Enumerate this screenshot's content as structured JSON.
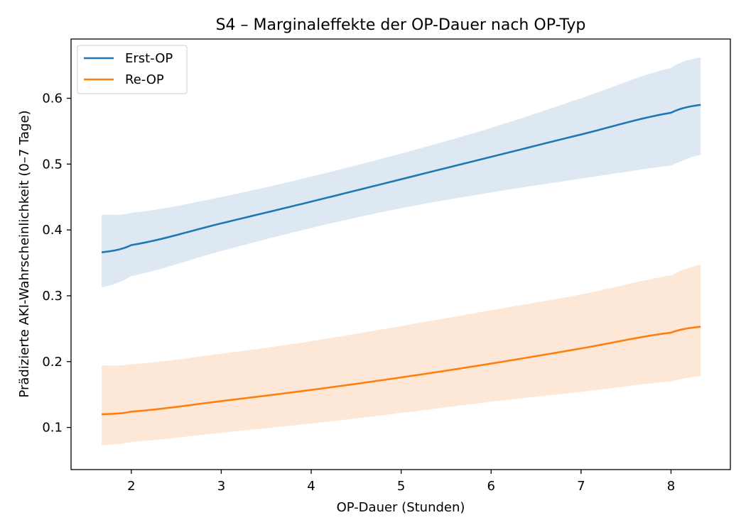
{
  "chart_data": {
    "type": "line",
    "title": "S4 – Marginaleffekte der OP-Dauer nach OP-Typ",
    "xlabel": "OP-Dauer (Stunden)",
    "ylabel": "Prädizierte AKI-Wahrscheinlichkeit (0–7 Tage)",
    "xlim": [
      1.33,
      8.66
    ],
    "ylim": [
      0.036,
      0.69
    ],
    "xticks": [
      2,
      3,
      4,
      5,
      6,
      7,
      8
    ],
    "yticks": [
      0.1,
      0.2,
      0.3,
      0.4,
      0.5,
      0.6
    ],
    "xtick_labels": [
      "2",
      "3",
      "4",
      "5",
      "6",
      "7",
      "8"
    ],
    "ytick_labels": [
      "0.1",
      "0.2",
      "0.3",
      "0.4",
      "0.5",
      "0.6"
    ],
    "grid": false,
    "legend_position": "top-left",
    "x": [
      1.67,
      2,
      3,
      4,
      5,
      6,
      7,
      8,
      8.33
    ],
    "series": [
      {
        "name": "Erst-OP",
        "color": "#1f77b4",
        "band_color": "#dde8f3",
        "values": [
          0.366,
          0.377,
          0.41,
          0.443,
          0.477,
          0.511,
          0.545,
          0.578,
          0.59
        ],
        "lower": [
          0.313,
          0.33,
          0.368,
          0.403,
          0.433,
          0.457,
          0.478,
          0.498,
          0.514
        ],
        "upper": [
          0.423,
          0.426,
          0.45,
          0.481,
          0.516,
          0.555,
          0.6,
          0.646,
          0.662
        ]
      },
      {
        "name": "Re-OP",
        "color": "#ff7f0e",
        "band_color": "#fde7d6",
        "values": [
          0.12,
          0.124,
          0.14,
          0.157,
          0.176,
          0.197,
          0.22,
          0.244,
          0.253
        ],
        "lower": [
          0.073,
          0.078,
          0.092,
          0.106,
          0.122,
          0.139,
          0.154,
          0.17,
          0.178
        ],
        "upper": [
          0.194,
          0.196,
          0.212,
          0.231,
          0.254,
          0.278,
          0.302,
          0.331,
          0.347
        ]
      }
    ]
  }
}
